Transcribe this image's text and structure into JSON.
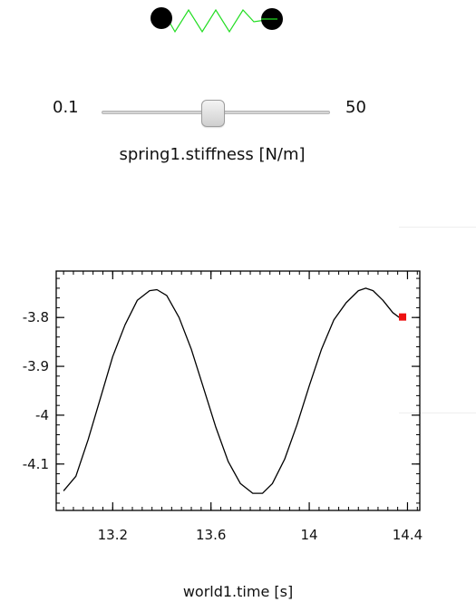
{
  "slider": {
    "min_label": "0.1",
    "max_label": "50",
    "label": "spring1.stiffness [N/m]",
    "min": 0.1,
    "max": 50,
    "value": 24
  },
  "spring": {
    "mass_color": "#000000",
    "spring_color": "#22dd22"
  },
  "chart_data": {
    "type": "line",
    "xlabel": "world1.time [s]",
    "ylabel": "",
    "title": "",
    "xlim": [
      12.97,
      14.45
    ],
    "ylim": [
      -4.195,
      -3.705
    ],
    "xticks": [
      13.2,
      13.6,
      14,
      14.4
    ],
    "xtick_labels": [
      "13.2",
      "13.6",
      "14",
      "14.4"
    ],
    "yticks": [
      -3.8,
      -3.9,
      -4,
      -4.1
    ],
    "ytick_labels": [
      "-3.8",
      "-3.9",
      "-4",
      "-4.1"
    ],
    "grid": false,
    "line_color": "#000000",
    "marker_color": "#ee1111",
    "series": [
      {
        "x": [
          13.0,
          13.05,
          13.1,
          13.15,
          13.2,
          13.25,
          13.3,
          13.35,
          13.38,
          13.42,
          13.47,
          13.52,
          13.57,
          13.62,
          13.67,
          13.72,
          13.77,
          13.81,
          13.85,
          13.9,
          13.95,
          14.0,
          14.05,
          14.1,
          14.15,
          14.2,
          14.23,
          14.26,
          14.3,
          14.34,
          14.38
        ],
        "y": [
          -4.155,
          -4.125,
          -4.05,
          -3.965,
          -3.88,
          -3.815,
          -3.765,
          -3.745,
          -3.743,
          -3.755,
          -3.8,
          -3.865,
          -3.945,
          -4.025,
          -4.095,
          -4.14,
          -4.16,
          -4.16,
          -4.14,
          -4.09,
          -4.02,
          -3.94,
          -3.865,
          -3.805,
          -3.77,
          -3.745,
          -3.74,
          -3.745,
          -3.765,
          -3.79,
          -3.805
        ]
      }
    ],
    "current_point": {
      "x": 14.38,
      "y": -3.799
    }
  }
}
